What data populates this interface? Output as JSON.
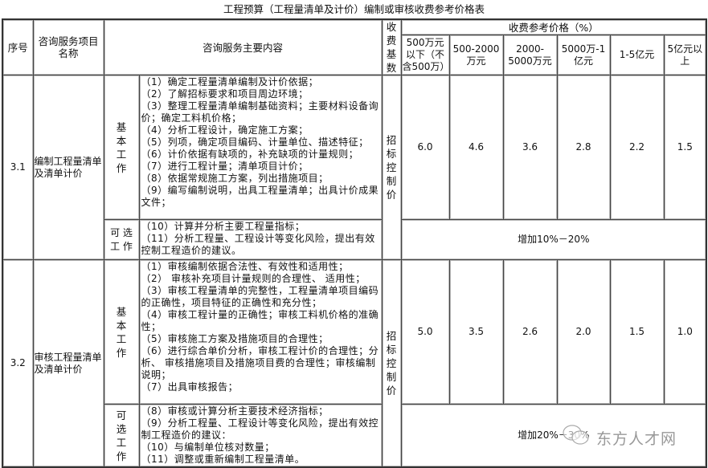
{
  "title": "工程预算（工程量清单及计价）编制或审核收费参考价格表",
  "headers": {
    "seq": "序号",
    "name": "咨询服务项目名称",
    "content": "咨询服务主要内容",
    "base": "收费基数",
    "price_group": "收费参考价格（%）",
    "ranges": [
      "500万元以下（不含500万）",
      "500-2000万元",
      "2000-5000万元",
      "5000万-1亿元",
      "1-5亿元",
      "5亿元以上"
    ]
  },
  "rows": [
    {
      "seq": "3.1",
      "name": "编制工程量清单及清单计价",
      "basic_label": "基本工作",
      "basic_items": [
        "（1）确定工程量清单编制及计价依据；",
        "（2）了解招标要求和项目周边环境；",
        "（3）整理工程量清单编制基础资料；主要材料设备询价；确定工料机价格；",
        "（4）分析工程设计，确定施工方案；",
        "（5）列项，确定项目编码、计量单位、描述特征；",
        "（6）计价依据有缺项的，补充缺项的计量规则；",
        "（7）进行工程计量；清单项目计价；",
        "（8）依据常规施工方案，列出措施项目；",
        "（9）编写编制说明，出具工程量清单；出具计价成果文件；"
      ],
      "optional_label": "可 选 工 作",
      "optional_items": [
        "（10）计算并分析主要工程量指标；",
        "（11）分析工程量、工程设计等变化风险，提出有效控制工程造价的建议。"
      ],
      "base": "招标控制价",
      "prices": [
        "6.0",
        "4.6",
        "3.6",
        "2.8",
        "2.2",
        "1.5"
      ],
      "optional_price": "增加10%－20%"
    },
    {
      "seq": "3.2",
      "name": "审核工程量清单及清单计价",
      "basic_label": "基本工作",
      "basic_items": [
        "（1）审核编制依据合法性、有效性和适用性；",
        "（2） 审核补充项目计量规则的合理性、 适用性；",
        "（3）审核工程量清单的完整性，工程量清单项目编码的正确性，项目特征的正确性和充分性；",
        "（4）审核工程计量的正确性；审核工料机价格的准确性；",
        "（5）审核施工方案及措施项目的合理性；",
        "（6）进行综合单价分析，审核工程计价的合理性；分析、 审核措施项目及措施项目费的合理性；审核编制说明；",
        "（7）出具审核报告；"
      ],
      "optional_label": "可选工作",
      "optional_items": [
        "（8）审核或计算分析主要技术经济指标；",
        "（9）分析工程量、工程设计等变化风险，提出有效控制工程造价的建议：",
        "（10）与编制单位核对数量；",
        "（11）调整或重新编制工程量清单。"
      ],
      "base": "招标控制价",
      "prices": [
        "5.0",
        "3.5",
        "2.6",
        "2.0",
        "1.5",
        "1.0"
      ],
      "optional_price": "增加20%－30%"
    }
  ],
  "watermark": "东方人才网"
}
